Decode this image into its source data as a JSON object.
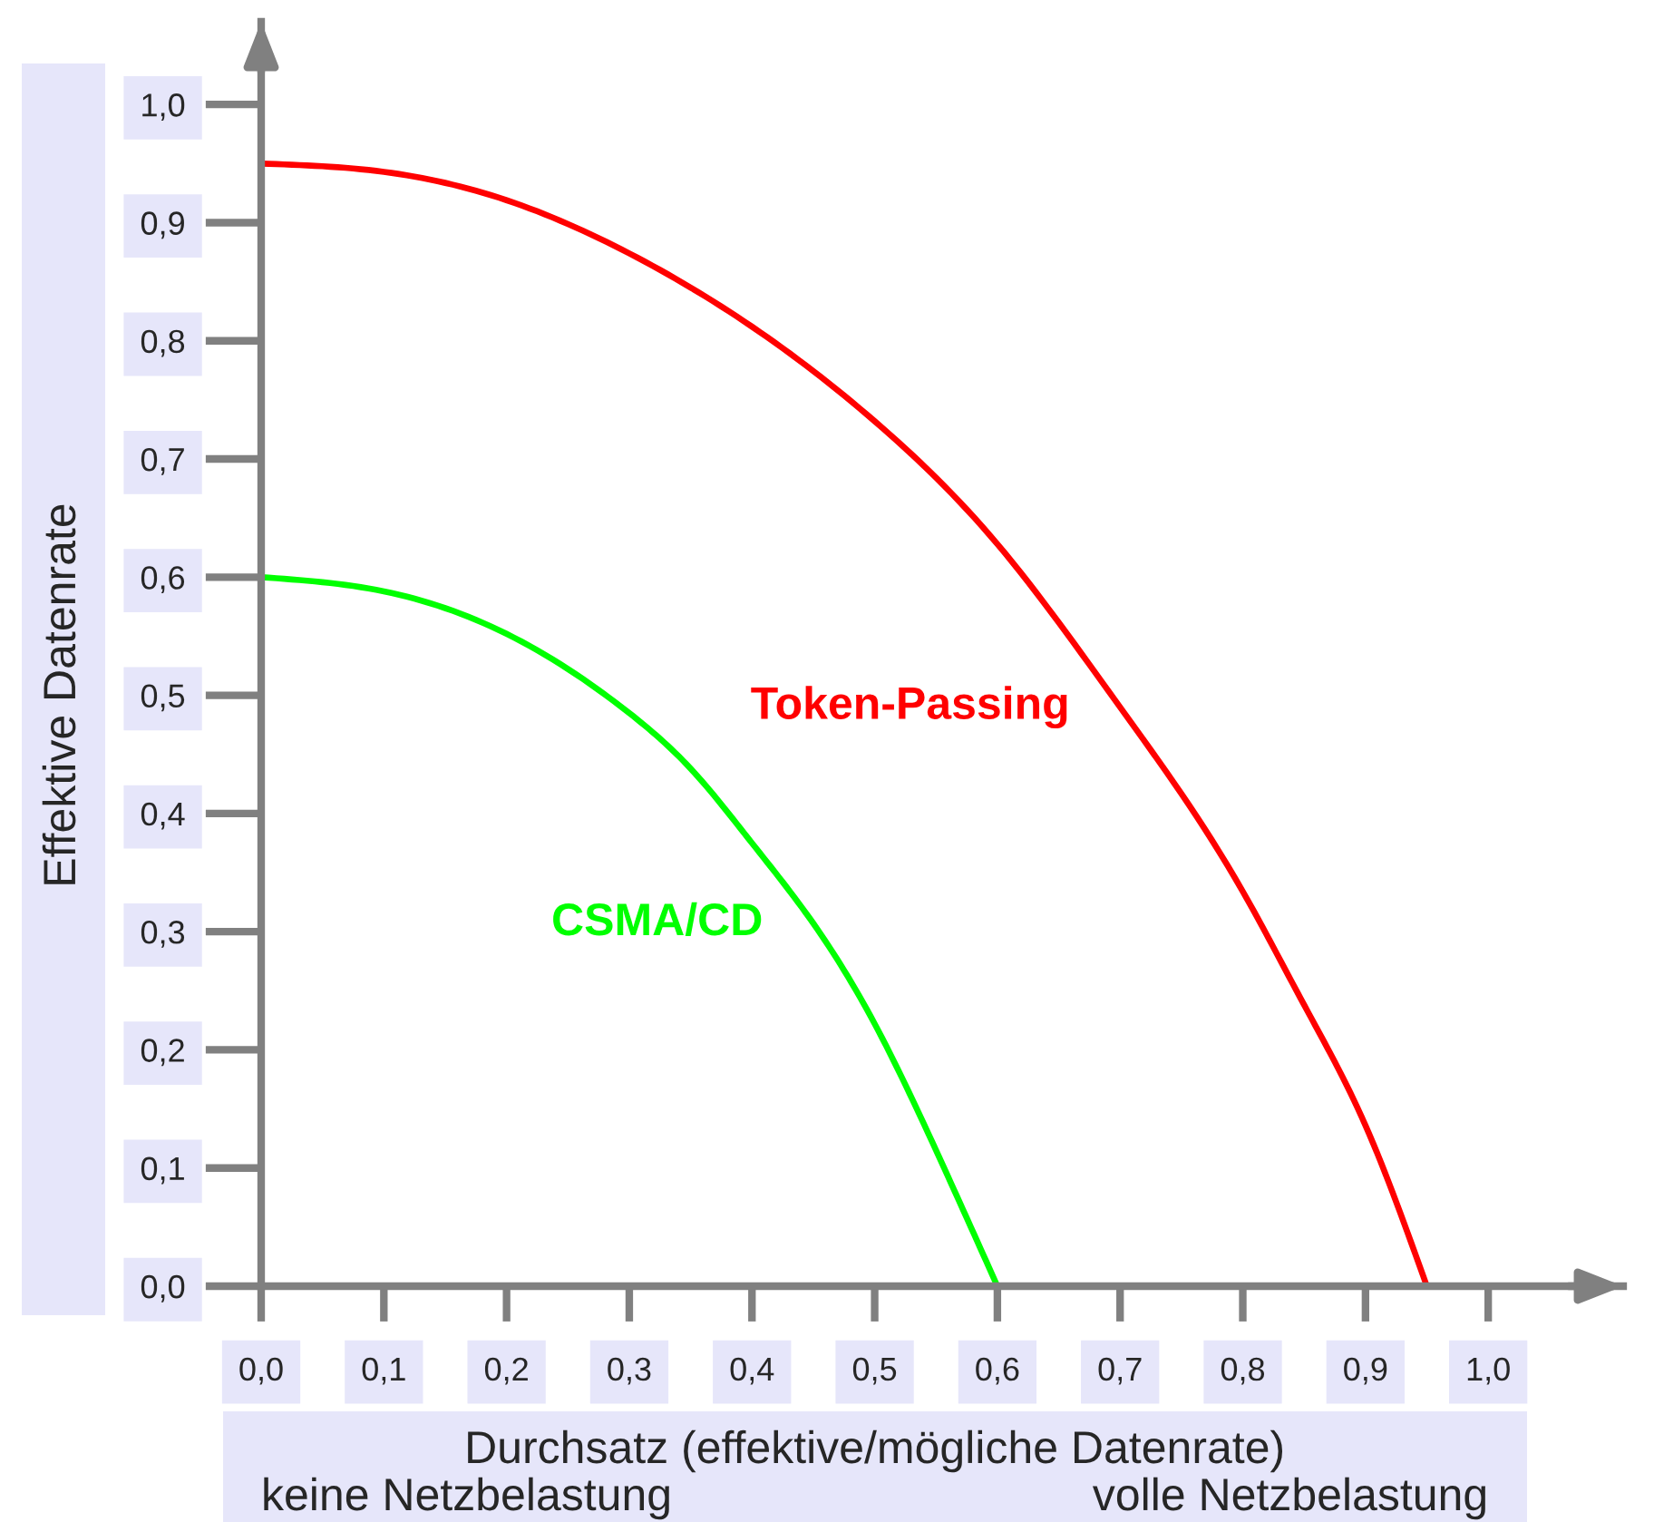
{
  "chart_data": {
    "type": "line",
    "xlabel": "Durchsatz (effektive/mögliche Datenrate)",
    "ylabel": "Effektive Datenrate",
    "annotations": [
      "keine Netzbelastung",
      "volle Netzbelastung"
    ],
    "xlim": [
      0,
      1.11
    ],
    "ylim": [
      0,
      1.07
    ],
    "xticks": [
      {
        "value": 0,
        "label": "0,0"
      },
      {
        "value": 0.1,
        "label": "0,1"
      },
      {
        "value": 0.2,
        "label": "0,2"
      },
      {
        "value": 0.3,
        "label": "0,3"
      },
      {
        "value": 0.4,
        "label": "0,4"
      },
      {
        "value": 0.5,
        "label": "0,5"
      },
      {
        "value": 0.6,
        "label": "0,6"
      },
      {
        "value": 0.7,
        "label": "0,7"
      },
      {
        "value": 0.8,
        "label": "0,8"
      },
      {
        "value": 0.9,
        "label": "0,9"
      },
      {
        "value": 1.0,
        "label": "1,0"
      }
    ],
    "yticks": [
      {
        "value": 0,
        "label": "0,0"
      },
      {
        "value": 0.1,
        "label": "0,1"
      },
      {
        "value": 0.2,
        "label": "0,2"
      },
      {
        "value": 0.3,
        "label": "0,3"
      },
      {
        "value": 0.4,
        "label": "0,4"
      },
      {
        "value": 0.5,
        "label": "0,5"
      },
      {
        "value": 0.6,
        "label": "0,6"
      },
      {
        "value": 0.7,
        "label": "0,7"
      },
      {
        "value": 0.8,
        "label": "0,8"
      },
      {
        "value": 0.9,
        "label": "0,9"
      },
      {
        "value": 1.0,
        "label": "1,0"
      }
    ],
    "grid": false,
    "line_style": "solid",
    "series": [
      {
        "name": "Token-Passing",
        "color": "#ff0000",
        "x": [
          0,
          0.1,
          0.2,
          0.3,
          0.4,
          0.5,
          0.6,
          0.7,
          0.8,
          0.85,
          0.9,
          0.95
        ],
        "values": [
          0.95,
          0.943,
          0.919,
          0.874,
          0.812,
          0.732,
          0.628,
          0.49,
          0.334,
          0.238,
          0.136,
          0
        ]
      },
      {
        "name": "CSMA/CD",
        "color": "#00ff00",
        "x": [
          0,
          0.1,
          0.2,
          0.3,
          0.35,
          0.4,
          0.45,
          0.5,
          0.55,
          0.6
        ],
        "values": [
          0.6,
          0.588,
          0.552,
          0.485,
          0.438,
          0.375,
          0.307,
          0.222,
          0.115,
          0
        ]
      }
    ]
  }
}
